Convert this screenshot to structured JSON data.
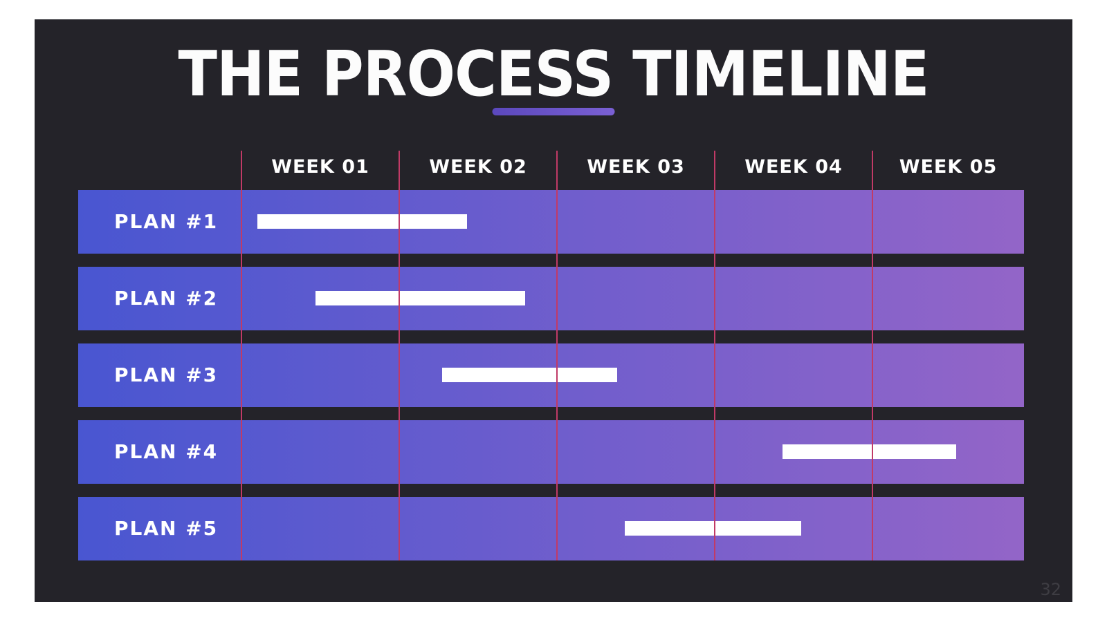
{
  "slide": {
    "title": "THE PROCESS TIMELINE",
    "page_number": "32"
  },
  "chart_data": {
    "type": "bar",
    "subtype": "gantt-timeline",
    "title": "THE PROCESS TIMELINE",
    "x_axis": {
      "tick_labels": [
        "WEEK 01",
        "WEEK 02",
        "WEEK 03",
        "WEEK 04",
        "WEEK 05"
      ],
      "range_weeks": [
        0,
        5
      ],
      "grid": true
    },
    "categories": [
      "PLAN #1",
      "PLAN #2",
      "PLAN #3",
      "PLAN #4",
      "PLAN #5"
    ],
    "bars": [
      {
        "task": "PLAN #1",
        "start_week": 0.1,
        "end_week": 1.43
      },
      {
        "task": "PLAN #2",
        "start_week": 0.47,
        "end_week": 1.8
      },
      {
        "task": "PLAN #3",
        "start_week": 1.27,
        "end_week": 2.38
      },
      {
        "task": "PLAN #4",
        "start_week": 3.43,
        "end_week": 4.53
      },
      {
        "task": "PLAN #5",
        "start_week": 2.43,
        "end_week": 3.55
      }
    ],
    "legend": "none"
  },
  "colors": {
    "page_background": "#ffffff",
    "slide_background": "#242329",
    "row_gradient_start": "#4956d1",
    "row_gradient_end": "#9365c8",
    "grid_line": "#c13a66",
    "bar_fill": "#ffffff",
    "accent_underline": "#7a60d4",
    "title_text": "#fcfcfc",
    "page_number_text": "#3e3d43"
  }
}
